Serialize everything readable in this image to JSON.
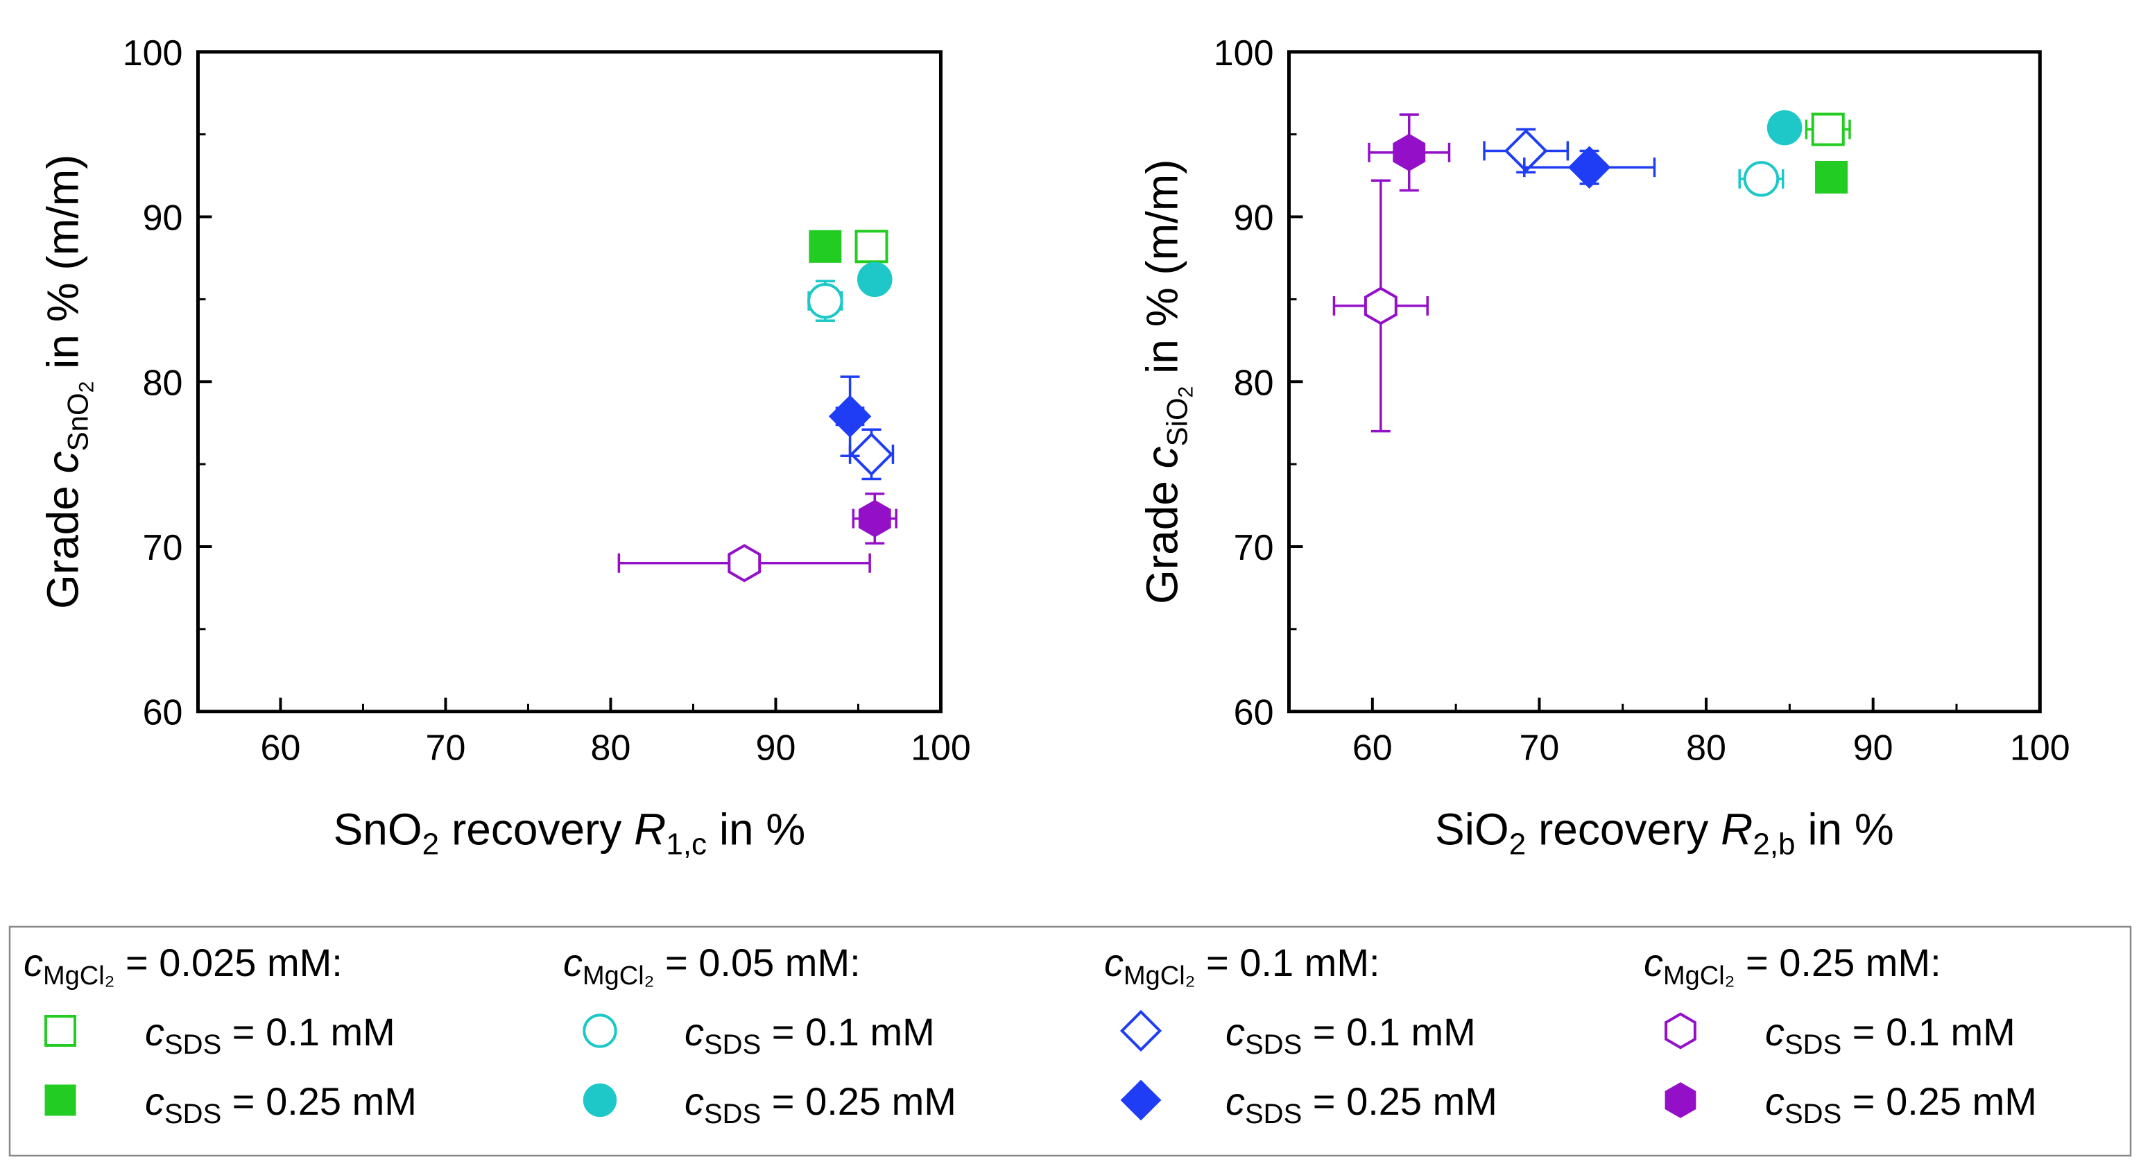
{
  "colors": {
    "green": "#22cc22",
    "cyan": "#1ec8c8",
    "blue": "#1f3df5",
    "purple": "#9410c8"
  },
  "chart_data": [
    {
      "type": "scatter",
      "title": "",
      "xlabel": {
        "prefix": "SnO",
        "sub1": "2",
        "mid": " recovery ",
        "var": "R",
        "sub2": "1,c",
        "suffix": " in %"
      },
      "ylabel": {
        "prefix": "Grade ",
        "var": "c",
        "sub": "SnO",
        "subsub": "2",
        "suffix": " in % (m/m)"
      },
      "xlim": [
        55,
        100
      ],
      "ylim": [
        60,
        100
      ],
      "xticks": [
        "60",
        "70",
        "80",
        "90",
        "100"
      ],
      "yticks": [
        "60",
        "70",
        "80",
        "90",
        "100"
      ],
      "series": [
        {
          "name": "MgCl2 0.025 mM, SDS 0.1 mM",
          "marker": "square",
          "filled": false,
          "color": "#22cc22",
          "x": 95.8,
          "y": 88.2,
          "xerr": 0,
          "yerr": 0
        },
        {
          "name": "MgCl2 0.025 mM, SDS 0.25 mM",
          "marker": "square",
          "filled": true,
          "color": "#22cc22",
          "x": 93.0,
          "y": 88.2,
          "xerr": 0,
          "yerr": 0
        },
        {
          "name": "MgCl2 0.05 mM, SDS 0.1 mM",
          "marker": "circle",
          "filled": false,
          "color": "#1ec8c8",
          "x": 93.0,
          "y": 84.9,
          "xerr": 1.0,
          "yerr": 1.2
        },
        {
          "name": "MgCl2 0.05 mM, SDS 0.25 mM",
          "marker": "circle",
          "filled": true,
          "color": "#1ec8c8",
          "x": 96.0,
          "y": 86.2,
          "xerr": 0,
          "yerr": 0
        },
        {
          "name": "MgCl2 0.1 mM, SDS 0.1 mM",
          "marker": "diamond",
          "filled": false,
          "color": "#1f3df5",
          "x": 95.8,
          "y": 75.6,
          "xerr": 1.3,
          "yerr": 1.5
        },
        {
          "name": "MgCl2 0.1 mM, SDS 0.25 mM",
          "marker": "diamond",
          "filled": true,
          "color": "#1f3df5",
          "x": 94.5,
          "y": 77.9,
          "xerr": 0.8,
          "yerr": 2.4
        },
        {
          "name": "MgCl2 0.25 mM, SDS 0.1 mM",
          "marker": "hexagon",
          "filled": false,
          "color": "#9410c8",
          "x": 88.1,
          "y": 69.0,
          "xerr": 7.6,
          "yerr": 0.3
        },
        {
          "name": "MgCl2 0.25 mM, SDS 0.25 mM",
          "marker": "hexagon",
          "filled": true,
          "color": "#9410c8",
          "x": 96.0,
          "y": 71.7,
          "xerr": 1.3,
          "yerr": 1.5
        }
      ]
    },
    {
      "type": "scatter",
      "title": "",
      "xlabel": {
        "prefix": "SiO",
        "sub1": "2",
        "mid": " recovery ",
        "var": "R",
        "sub2": "2,b",
        "suffix": " in %"
      },
      "ylabel": {
        "prefix": "Grade ",
        "var": "c",
        "sub": "SiO",
        "subsub": "2",
        "suffix": " in % (m/m)"
      },
      "xlim": [
        55,
        100
      ],
      "ylim": [
        60,
        100
      ],
      "xticks": [
        "60",
        "70",
        "80",
        "90",
        "100"
      ],
      "yticks": [
        "60",
        "70",
        "80",
        "90",
        "100"
      ],
      "series": [
        {
          "name": "MgCl2 0.025 mM, SDS 0.1 mM",
          "marker": "square",
          "filled": false,
          "color": "#22cc22",
          "x": 87.3,
          "y": 95.3,
          "xerr": 1.3,
          "yerr": 0
        },
        {
          "name": "MgCl2 0.025 mM, SDS 0.25 mM",
          "marker": "square",
          "filled": true,
          "color": "#22cc22",
          "x": 87.5,
          "y": 92.4,
          "xerr": 0,
          "yerr": 0
        },
        {
          "name": "MgCl2 0.05 mM, SDS 0.1 mM",
          "marker": "circle",
          "filled": false,
          "color": "#1ec8c8",
          "x": 83.3,
          "y": 92.3,
          "xerr": 1.3,
          "yerr": 0
        },
        {
          "name": "MgCl2 0.05 mM, SDS 0.25 mM",
          "marker": "circle",
          "filled": true,
          "color": "#1ec8c8",
          "x": 84.7,
          "y": 95.4,
          "xerr": 0,
          "yerr": 0
        },
        {
          "name": "MgCl2 0.1 mM, SDS 0.1 mM",
          "marker": "diamond",
          "filled": false,
          "color": "#1f3df5",
          "x": 69.2,
          "y": 94.0,
          "xerr": 2.5,
          "yerr": 1.3
        },
        {
          "name": "MgCl2 0.1 mM, SDS 0.25 mM",
          "marker": "diamond",
          "filled": true,
          "color": "#1f3df5",
          "x": 73.0,
          "y": 93.0,
          "xerr": 3.9,
          "yerr": 1.0
        },
        {
          "name": "MgCl2 0.25 mM, SDS 0.1 mM",
          "marker": "hexagon",
          "filled": false,
          "color": "#9410c8",
          "x": 60.5,
          "y": 84.6,
          "xerr": 2.8,
          "yerr": 7.6
        },
        {
          "name": "MgCl2 0.25 mM, SDS 0.25 mM",
          "marker": "hexagon",
          "filled": true,
          "color": "#9410c8",
          "x": 62.2,
          "y": 93.9,
          "xerr": 2.4,
          "yerr": 2.3
        }
      ]
    }
  ],
  "legend": {
    "groups": [
      {
        "var": "c",
        "sub": "MgCl₂",
        "text": " = 0.025 mM:",
        "items": [
          {
            "marker": "square",
            "filled": false,
            "color": "#22cc22",
            "var": "c",
            "sub": "SDS",
            "text": " = 0.1 mM"
          },
          {
            "marker": "square",
            "filled": true,
            "color": "#22cc22",
            "var": "c",
            "sub": "SDS",
            "text": " = 0.25 mM"
          }
        ]
      },
      {
        "var": "c",
        "sub": "MgCl₂",
        "text": " = 0.05 mM:",
        "items": [
          {
            "marker": "circle",
            "filled": false,
            "color": "#1ec8c8",
            "var": "c",
            "sub": "SDS",
            "text": " = 0.1 mM"
          },
          {
            "marker": "circle",
            "filled": true,
            "color": "#1ec8c8",
            "var": "c",
            "sub": "SDS",
            "text": " = 0.25 mM"
          }
        ]
      },
      {
        "var": "c",
        "sub": "MgCl₂",
        "text": " = 0.1 mM:",
        "items": [
          {
            "marker": "diamond",
            "filled": false,
            "color": "#1f3df5",
            "var": "c",
            "sub": "SDS",
            "text": " = 0.1 mM"
          },
          {
            "marker": "diamond",
            "filled": true,
            "color": "#1f3df5",
            "var": "c",
            "sub": "SDS",
            "text": " = 0.25 mM"
          }
        ]
      },
      {
        "var": "c",
        "sub": "MgCl₂",
        "text": " = 0.25 mM:",
        "items": [
          {
            "marker": "hexagon",
            "filled": false,
            "color": "#9410c8",
            "var": "c",
            "sub": "SDS",
            "text": " = 0.1 mM"
          },
          {
            "marker": "hexagon",
            "filled": true,
            "color": "#9410c8",
            "var": "c",
            "sub": "SDS",
            "text": " = 0.25 mM"
          }
        ]
      }
    ]
  }
}
